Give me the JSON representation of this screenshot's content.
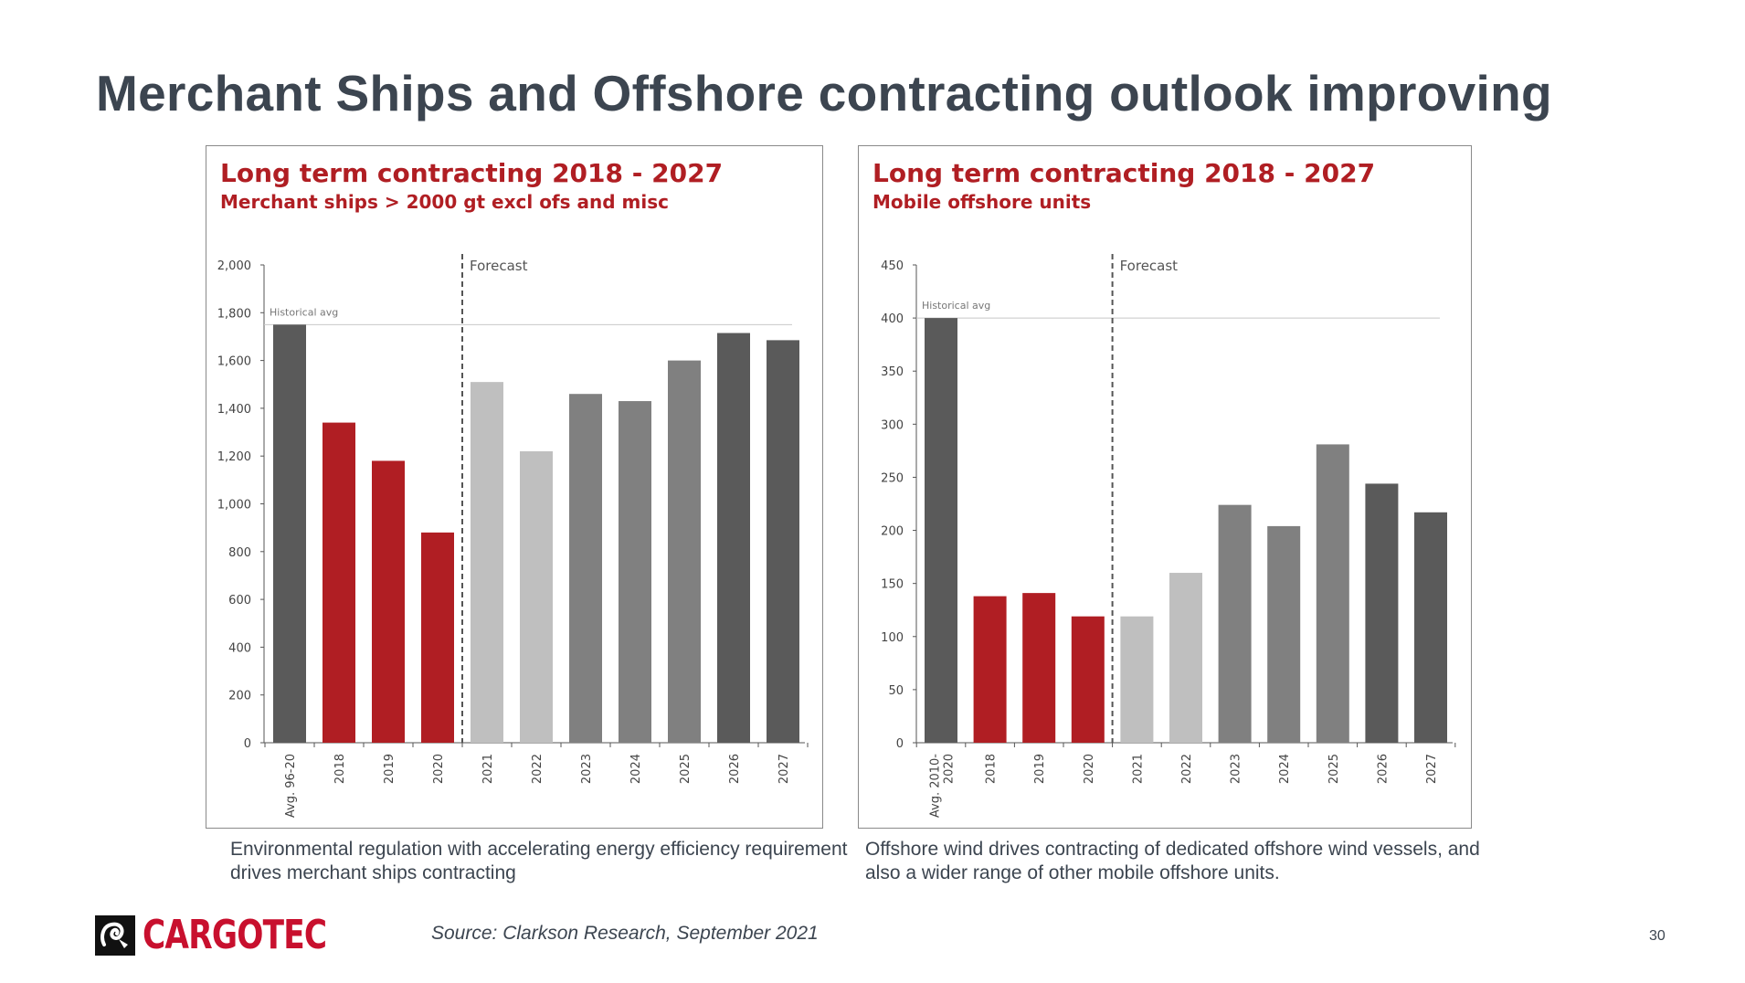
{
  "slide": {
    "title": "Merchant Ships and Offshore contracting outlook improving",
    "source": "Source: Clarkson Research, September 2021",
    "page_number": "30",
    "logo_text": "CARGOTEC",
    "logo_icon": "cargotec-ram-icon"
  },
  "captions": {
    "left": "Environmental regulation with accelerating energy efficiency requirement drives merchant ships contracting",
    "right": "Offshore wind drives contracting of dedicated offshore wind vessels, and also a wider range of other mobile offshore units."
  },
  "colors": {
    "accent_red": "#b01e23",
    "dark_gray": "#5a5a5a",
    "mid_gray": "#808080",
    "light_gray": "#bfbfbf",
    "title_text": "#3c4550",
    "logo_red": "#c8102e"
  },
  "chart_data": [
    {
      "type": "bar",
      "title": "Long term contracting 2018 - 2027",
      "subtitle": "Merchant ships > 2000 gt excl ofs and misc",
      "categories": [
        "Avg. 96-20",
        "2018",
        "2019",
        "2020",
        "2021",
        "2022",
        "2023",
        "2024",
        "2025",
        "2026",
        "2027"
      ],
      "values": [
        1750,
        1340,
        1180,
        880,
        1510,
        1220,
        1460,
        1430,
        1600,
        1715,
        1685
      ],
      "bar_colors": [
        "#5a5a5a",
        "#b01e23",
        "#b01e23",
        "#b01e23",
        "#bfbfbf",
        "#bfbfbf",
        "#808080",
        "#808080",
        "#808080",
        "#5a5a5a",
        "#5a5a5a"
      ],
      "yticks": [
        "0",
        "200",
        "400",
        "600",
        "800",
        "1,000",
        "1,200",
        "1,400",
        "1,600",
        "1,800",
        "2,000"
      ],
      "ylim": [
        0,
        2000
      ],
      "ytick_step": 200,
      "reference_line": {
        "label": "Historical avg",
        "value": 1750
      },
      "forecast_label": "Forecast",
      "forecast_after_index": 3,
      "grid": false,
      "legend": "none"
    },
    {
      "type": "bar",
      "title": "Long term contracting 2018 - 2027",
      "subtitle": "Mobile offshore units",
      "categories": [
        "Avg. 2010-2020",
        "2018",
        "2019",
        "2020",
        "2021",
        "2022",
        "2023",
        "2024",
        "2025",
        "2026",
        "2027"
      ],
      "category_lines": [
        [
          "Avg. 2010-",
          "2020"
        ],
        [
          "2018"
        ],
        [
          "2019"
        ],
        [
          "2020"
        ],
        [
          "2021"
        ],
        [
          "2022"
        ],
        [
          "2023"
        ],
        [
          "2024"
        ],
        [
          "2025"
        ],
        [
          "2026"
        ],
        [
          "2027"
        ]
      ],
      "values": [
        400,
        138,
        141,
        119,
        119,
        160,
        224,
        204,
        281,
        244,
        217
      ],
      "bar_colors": [
        "#5a5a5a",
        "#b01e23",
        "#b01e23",
        "#b01e23",
        "#bfbfbf",
        "#bfbfbf",
        "#808080",
        "#808080",
        "#808080",
        "#5a5a5a",
        "#5a5a5a"
      ],
      "yticks": [
        "0",
        "50",
        "100",
        "150",
        "200",
        "250",
        "300",
        "350",
        "400",
        "450"
      ],
      "ylim": [
        0,
        450
      ],
      "ytick_step": 50,
      "reference_line": {
        "label": "Historical avg",
        "value": 400
      },
      "forecast_label": "Forecast",
      "forecast_after_index": 3,
      "grid": false,
      "legend": "none"
    }
  ]
}
